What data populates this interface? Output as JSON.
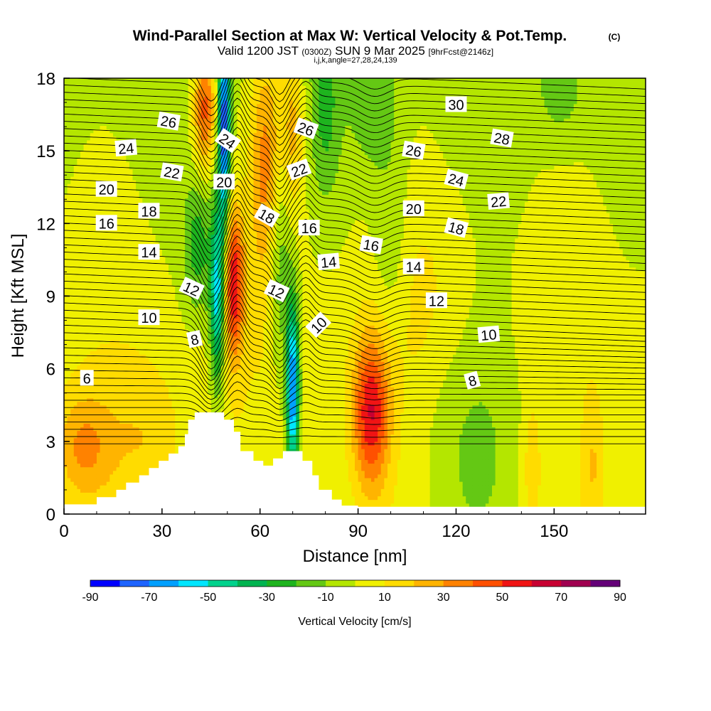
{
  "title": {
    "main": "Wind-Parallel Section at Max W: Vertical Velocity & Pot.Temp.",
    "copyright": "(C)",
    "valid_prefix": "Valid 1200 JST",
    "valid_utc": "(0300Z)",
    "valid_date": "SUN 9 Mar 2025",
    "forecast": "[9hrFcst@2146z]",
    "grid_info": "i,j,k,angle=27,28,24,139"
  },
  "chart_data": {
    "type": "heatmap",
    "xlabel": "Distance [nm]",
    "ylabel": "Height [Kft MSL]",
    "xlim": [
      0,
      178
    ],
    "ylim": [
      0,
      18
    ],
    "x_ticks": [
      "0",
      "30",
      "60",
      "90",
      "120",
      "150"
    ],
    "y_ticks": [
      "0",
      "3",
      "6",
      "9",
      "12",
      "15",
      "18"
    ],
    "colorbar": {
      "label": "Vertical Velocity [cm/s]",
      "tick_labels": [
        "-90",
        "-70",
        "-50",
        "-30",
        "-10",
        "10",
        "30",
        "50",
        "70",
        "90"
      ],
      "bounds": [
        -90,
        -80,
        -70,
        -60,
        -50,
        -40,
        -30,
        -20,
        -10,
        0,
        10,
        20,
        30,
        40,
        50,
        60,
        70,
        80,
        90
      ],
      "colors": [
        "#0000ff",
        "#1e64ff",
        "#00a0ff",
        "#00e6ff",
        "#00d28c",
        "#00b450",
        "#1eb41e",
        "#64c814",
        "#b4e600",
        "#f0f000",
        "#ffdc00",
        "#ffb400",
        "#ff8200",
        "#ff5000",
        "#f01414",
        "#c80032",
        "#a00050",
        "#640078"
      ]
    },
    "terrain_kft": [
      [
        0,
        0.4
      ],
      [
        10,
        0.4
      ],
      [
        10,
        0.7
      ],
      [
        16,
        0.7
      ],
      [
        16,
        1.0
      ],
      [
        19,
        1.0
      ],
      [
        19,
        1.3
      ],
      [
        23,
        1.3
      ],
      [
        23,
        1.6
      ],
      [
        26,
        1.6
      ],
      [
        26,
        1.9
      ],
      [
        29,
        1.9
      ],
      [
        29,
        2.2
      ],
      [
        32,
        2.2
      ],
      [
        32,
        2.5
      ],
      [
        35,
        2.5
      ],
      [
        35,
        2.8
      ],
      [
        37,
        2.8
      ],
      [
        37,
        3.3
      ],
      [
        38,
        3.3
      ],
      [
        38,
        3.9
      ],
      [
        40,
        3.9
      ],
      [
        40,
        4.2
      ],
      [
        49,
        4.2
      ],
      [
        49,
        3.9
      ],
      [
        52,
        3.9
      ],
      [
        52,
        3.4
      ],
      [
        54,
        3.4
      ],
      [
        54,
        2.6
      ],
      [
        58,
        2.6
      ],
      [
        58,
        2.2
      ],
      [
        61,
        2.2
      ],
      [
        61,
        2.0
      ],
      [
        64,
        2.0
      ],
      [
        64,
        2.3
      ],
      [
        67,
        2.3
      ],
      [
        67,
        2.6
      ],
      [
        73,
        2.6
      ],
      [
        73,
        2.2
      ],
      [
        76,
        2.2
      ],
      [
        76,
        1.6
      ],
      [
        78,
        1.6
      ],
      [
        78,
        1.0
      ],
      [
        82,
        1.0
      ],
      [
        82,
        0.6
      ],
      [
        85,
        0.6
      ],
      [
        85,
        0.35
      ],
      [
        90,
        0.35
      ],
      [
        90,
        0.3
      ],
      [
        178,
        0.3
      ]
    ],
    "w_cells": [
      {
        "x": 94,
        "y": 4.2,
        "sx": 4,
        "sy": 2.2,
        "w": 55
      },
      {
        "x": 52,
        "y": 9.6,
        "sx": 2.2,
        "sy": 2.2,
        "w": 55
      },
      {
        "x": 43,
        "y": 16.8,
        "sx": 2.5,
        "sy": 1.8,
        "w": 48
      },
      {
        "x": 62,
        "y": 14.5,
        "sx": 3.5,
        "sy": 3.5,
        "w": 35
      },
      {
        "x": 70,
        "y": 16.0,
        "sx": 2.5,
        "sy": 2.5,
        "w": 25
      },
      {
        "x": 6,
        "y": 2.8,
        "sx": 6,
        "sy": 1.5,
        "w": 25
      },
      {
        "x": 25,
        "y": 3.2,
        "sx": 8,
        "sy": 2.2,
        "w": 14
      },
      {
        "x": 143,
        "y": 2.0,
        "sx": 2,
        "sy": 2,
        "w": 14
      },
      {
        "x": 162,
        "y": 2.0,
        "sx": 2,
        "sy": 2,
        "w": 14
      },
      {
        "x": 108,
        "y": 9.5,
        "sx": 12,
        "sy": 3,
        "w": 8
      },
      {
        "x": 49,
        "y": 16.0,
        "sx": 1.3,
        "sy": 2.8,
        "w": -80
      },
      {
        "x": 47,
        "y": 9.0,
        "sx": 1.6,
        "sy": 2.6,
        "w": -60
      },
      {
        "x": 70,
        "y": 5.2,
        "sx": 1.4,
        "sy": 2.5,
        "w": -78
      },
      {
        "x": 41,
        "y": 11.0,
        "sx": 3,
        "sy": 2,
        "w": -25
      },
      {
        "x": 66,
        "y": 10.5,
        "sx": 2.5,
        "sy": 3.5,
        "w": -25
      },
      {
        "x": 80,
        "y": 16.5,
        "sx": 3,
        "sy": 2.5,
        "w": -18
      },
      {
        "x": 100,
        "y": 11,
        "sx": 4,
        "sy": 3,
        "w": -15
      },
      {
        "x": 125,
        "y": 2.5,
        "sx": 12,
        "sy": 4,
        "w": -16
      },
      {
        "x": 95,
        "y": 17,
        "sx": 5,
        "sy": 2,
        "w": -14
      },
      {
        "x": 152,
        "y": 17.5,
        "sx": 5,
        "sy": 1.5,
        "w": -14
      }
    ],
    "theta_labels": [
      {
        "text": "6",
        "x": 7,
        "y": 5.6,
        "rot": 0
      },
      {
        "text": "8",
        "x": 40,
        "y": 7.2,
        "rot": -12
      },
      {
        "text": "8",
        "x": 125,
        "y": 5.5,
        "rot": -15
      },
      {
        "text": "10",
        "x": 26,
        "y": 8.1,
        "rot": 0
      },
      {
        "text": "10",
        "x": 78,
        "y": 7.8,
        "rot": -45
      },
      {
        "text": "10",
        "x": 130,
        "y": 7.4,
        "rot": -5
      },
      {
        "text": "12",
        "x": 39,
        "y": 9.3,
        "rot": 25
      },
      {
        "text": "12",
        "x": 65,
        "y": 9.2,
        "rot": 25
      },
      {
        "text": "12",
        "x": 114,
        "y": 8.8,
        "rot": 0
      },
      {
        "text": "14",
        "x": 26,
        "y": 10.8,
        "rot": 0
      },
      {
        "text": "14",
        "x": 81,
        "y": 10.4,
        "rot": -5
      },
      {
        "text": "14",
        "x": 107,
        "y": 10.2,
        "rot": 0
      },
      {
        "text": "16",
        "x": 13,
        "y": 12.0,
        "rot": 0
      },
      {
        "text": "16",
        "x": 75,
        "y": 11.8,
        "rot": 0
      },
      {
        "text": "16",
        "x": 94,
        "y": 11.1,
        "rot": 10
      },
      {
        "text": "18",
        "x": 26,
        "y": 12.5,
        "rot": 0
      },
      {
        "text": "18",
        "x": 62,
        "y": 12.3,
        "rot": 30
      },
      {
        "text": "18",
        "x": 120,
        "y": 11.8,
        "rot": 15
      },
      {
        "text": "20",
        "x": 13,
        "y": 13.4,
        "rot": 0
      },
      {
        "text": "20",
        "x": 49,
        "y": 13.7,
        "rot": 0
      },
      {
        "text": "20",
        "x": 107,
        "y": 12.6,
        "rot": 0
      },
      {
        "text": "22",
        "x": 33,
        "y": 14.1,
        "rot": 10
      },
      {
        "text": "22",
        "x": 72,
        "y": 14.2,
        "rot": -20
      },
      {
        "text": "22",
        "x": 133,
        "y": 12.9,
        "rot": -5
      },
      {
        "text": "24",
        "x": 19,
        "y": 15.1,
        "rot": -5
      },
      {
        "text": "24",
        "x": 50,
        "y": 15.4,
        "rot": 35
      },
      {
        "text": "24",
        "x": 120,
        "y": 13.8,
        "rot": 15
      },
      {
        "text": "26",
        "x": 32,
        "y": 16.2,
        "rot": 10
      },
      {
        "text": "26",
        "x": 74,
        "y": 15.9,
        "rot": 20
      },
      {
        "text": "26",
        "x": 107,
        "y": 15.0,
        "rot": 10
      },
      {
        "text": "28",
        "x": 134,
        "y": 15.5,
        "rot": 10
      },
      {
        "text": "30",
        "x": 120,
        "y": 16.9,
        "rot": 0
      }
    ]
  }
}
